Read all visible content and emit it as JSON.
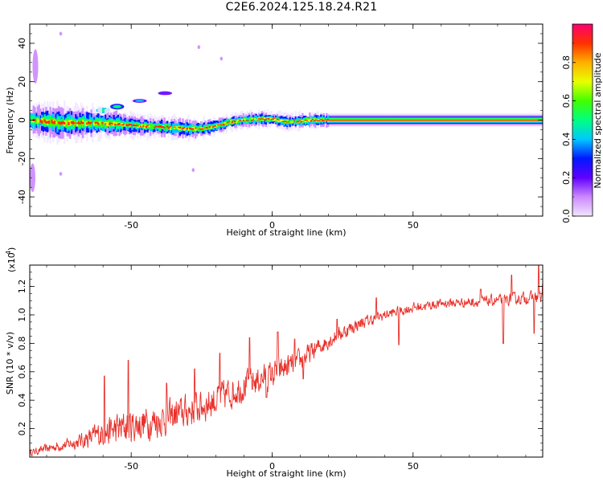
{
  "title": "C2E6.2024.125.18.24.R21",
  "colors": {
    "snr_line": "#e8302a",
    "background": "#ffffff",
    "frame": "#000000",
    "colormap": [
      "#f0e6ff",
      "#cc88ff",
      "#6000ff",
      "#0018ff",
      "#00c8ff",
      "#00ff80",
      "#40ff00",
      "#e8ff00",
      "#ffb000",
      "#ff3000",
      "#ff0070"
    ]
  },
  "chart_data": [
    {
      "type": "heatmap",
      "title": "",
      "xlabel": "Height of straight line (km)",
      "ylabel": "Frequency (Hz)",
      "xlim": [
        -86,
        96
      ],
      "ylim": [
        -50,
        50
      ],
      "x_ticks": [
        -50,
        0,
        50
      ],
      "y_ticks": [
        -40,
        -20,
        0,
        20,
        40
      ],
      "x_tick_labels": [
        "-50",
        "0",
        "50"
      ],
      "y_tick_labels": [
        "-40",
        "-20",
        "0",
        "20",
        "40"
      ],
      "colorbar": {
        "label": "Normalized spectral amplitude",
        "range": [
          0,
          1
        ],
        "ticks": [
          0.0,
          0.2,
          0.4,
          0.6,
          0.8
        ],
        "tick_labels": [
          "0.0",
          "0.2",
          "0.4",
          "0.6",
          "0.8"
        ]
      },
      "ridge": [
        {
          "x": -86,
          "freq": 0.0
        },
        {
          "x": -75,
          "freq": -1.5
        },
        {
          "x": -65,
          "freq": -1.5
        },
        {
          "x": -55,
          "freq": -2.0
        },
        {
          "x": -48,
          "freq": -3.0
        },
        {
          "x": -40,
          "freq": -3.5
        },
        {
          "x": -30,
          "freq": -4.5
        },
        {
          "x": -25,
          "freq": -4.5
        },
        {
          "x": -20,
          "freq": -3.0
        },
        {
          "x": -15,
          "freq": -1.0
        },
        {
          "x": -10,
          "freq": 0.0
        },
        {
          "x": -5,
          "freq": 0.5
        },
        {
          "x": 0,
          "freq": 0.5
        },
        {
          "x": 5,
          "freq": -1.0
        },
        {
          "x": 10,
          "freq": -0.5
        },
        {
          "x": 15,
          "freq": 0.0
        },
        {
          "x": 25,
          "freq": 0.0
        },
        {
          "x": 96,
          "freq": 0.0
        }
      ],
      "ridge_halfwidth_hz": [
        3.0,
        3.5,
        3.0,
        2.5,
        2.0,
        2.0,
        2.0,
        1.8,
        1.5,
        1.5,
        1.5,
        1.5,
        1.5,
        1.5,
        1.5,
        1.5,
        1.5,
        1.5
      ],
      "blobs": [
        {
          "x": -60,
          "freq": 5.0,
          "w": 5,
          "h": 3,
          "level": 0.35
        },
        {
          "x": -55,
          "freq": 7.0,
          "w": 5,
          "h": 3,
          "level": 0.3
        },
        {
          "x": -47,
          "freq": 10.0,
          "w": 5,
          "h": 2,
          "level": 0.2
        },
        {
          "x": -38,
          "freq": 14.0,
          "w": 5,
          "h": 2,
          "level": 0.15
        },
        {
          "x": -66,
          "freq": 3.0,
          "w": 4,
          "h": 2,
          "level": 0.25
        },
        {
          "x": -72,
          "freq": 2.0,
          "w": 4,
          "h": 2,
          "level": 0.22
        },
        {
          "x": -80,
          "freq": 1.0,
          "w": 4,
          "h": 2,
          "level": 0.3
        },
        {
          "x": -84,
          "freq": 28.0,
          "w": 2,
          "h": 18,
          "level": 0.1
        },
        {
          "x": -85,
          "freq": -30.0,
          "w": 2,
          "h": 15,
          "level": 0.08
        },
        {
          "x": -75,
          "freq": 45.0,
          "w": 1,
          "h": 2,
          "level": 0.08
        },
        {
          "x": -26,
          "freq": 38.0,
          "w": 1,
          "h": 2,
          "level": 0.06
        },
        {
          "x": -18,
          "freq": 32.0,
          "w": 1,
          "h": 2,
          "level": 0.06
        },
        {
          "x": -75,
          "freq": -28.0,
          "w": 1,
          "h": 2,
          "level": 0.06
        },
        {
          "x": -28,
          "freq": -26.0,
          "w": 1,
          "h": 2,
          "level": 0.06
        }
      ]
    },
    {
      "type": "line",
      "title": "",
      "xlabel": "Height of straight line (km)",
      "ylabel": "SNR (10 * v/v)",
      "y_multiplier": "(x10",
      "y_multiplier_exp": "4",
      "xlim": [
        -86,
        96
      ],
      "ylim": [
        0.0,
        1.35
      ],
      "x_ticks": [
        -50,
        0,
        50
      ],
      "y_ticks": [
        0.2,
        0.4,
        0.6,
        0.8,
        1.0,
        1.2
      ],
      "x_tick_labels": [
        "-50",
        "0",
        "50"
      ],
      "y_tick_labels": [
        "0.2",
        "0.4",
        "0.6",
        "0.8",
        "1.0",
        "1.2"
      ],
      "series": [
        {
          "trend": [
            {
              "x": -86,
              "y": 0.03
            },
            {
              "x": -80,
              "y": 0.06
            },
            {
              "x": -70,
              "y": 0.1
            },
            {
              "x": -60,
              "y": 0.17
            },
            {
              "x": -50,
              "y": 0.22
            },
            {
              "x": -40,
              "y": 0.26
            },
            {
              "x": -30,
              "y": 0.32
            },
            {
              "x": -20,
              "y": 0.4
            },
            {
              "x": -10,
              "y": 0.5
            },
            {
              "x": 0,
              "y": 0.58
            },
            {
              "x": 10,
              "y": 0.68
            },
            {
              "x": 20,
              "y": 0.82
            },
            {
              "x": 30,
              "y": 0.93
            },
            {
              "x": 40,
              "y": 1.0
            },
            {
              "x": 50,
              "y": 1.05
            },
            {
              "x": 60,
              "y": 1.08
            },
            {
              "x": 70,
              "y": 1.09
            },
            {
              "x": 80,
              "y": 1.1
            },
            {
              "x": 90,
              "y": 1.12
            },
            {
              "x": 96,
              "y": 1.12
            }
          ],
          "noise": [
            {
              "x": -86,
              "amp": 0.03
            },
            {
              "x": -70,
              "amp": 0.06
            },
            {
              "x": -55,
              "amp": 0.16
            },
            {
              "x": -40,
              "amp": 0.16
            },
            {
              "x": -20,
              "amp": 0.16
            },
            {
              "x": 0,
              "amp": 0.13
            },
            {
              "x": 20,
              "amp": 0.08
            },
            {
              "x": 40,
              "amp": 0.05
            },
            {
              "x": 60,
              "amp": 0.045
            },
            {
              "x": 96,
              "amp": 0.06
            }
          ],
          "spikes": [
            {
              "x": -59.5,
              "y": 0.57
            },
            {
              "x": -51.0,
              "y": 0.68
            },
            {
              "x": -37.5,
              "y": 0.52
            },
            {
              "x": -27.5,
              "y": 0.62
            },
            {
              "x": -18.5,
              "y": 0.73
            },
            {
              "x": -8.0,
              "y": 0.84
            },
            {
              "x": 2.0,
              "y": 0.88
            },
            {
              "x": 8.0,
              "y": 0.83
            },
            {
              "x": 23.0,
              "y": 0.97
            },
            {
              "x": 37.0,
              "y": 1.12
            },
            {
              "x": 74.0,
              "y": 1.18
            },
            {
              "x": 85.0,
              "y": 1.28
            },
            {
              "x": 94.5,
              "y": 1.35
            },
            {
              "x": 96.0,
              "y": 1.22
            }
          ],
          "dips": [
            {
              "x": 45.0,
              "y": 0.79
            },
            {
              "x": 82.0,
              "y": 0.8
            },
            {
              "x": 93.0,
              "y": 0.87
            },
            {
              "x": -2.0,
              "y": 0.42
            },
            {
              "x": 11.0,
              "y": 0.55
            }
          ]
        }
      ]
    }
  ]
}
